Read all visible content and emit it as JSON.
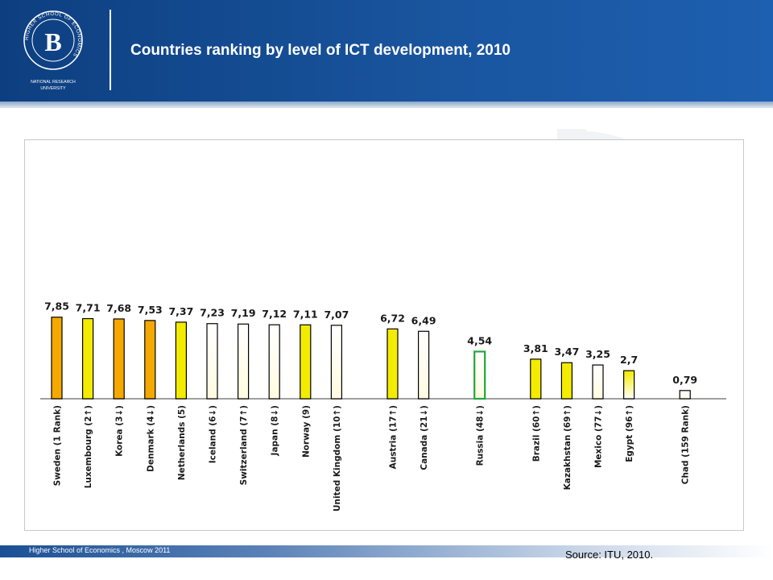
{
  "header": {
    "title": "Countries ranking by level of ICT development, 2010",
    "logo_text": "HIGHER SCHOOL OF ECONOMICS",
    "logo_caption_line1": "NATIONAL RESEARCH",
    "logo_caption_line2": "UNIVERSITY",
    "colors": {
      "background": "#1a56a0",
      "text": "#ffffff"
    }
  },
  "footer": {
    "institution": "Higher School of Economics , Moscow 2011",
    "source": "Source: ITU, 2010."
  },
  "chart_data": {
    "type": "bar",
    "title": "",
    "xlabel": "",
    "ylabel": "",
    "ylim": [
      0,
      8.5
    ],
    "grid": false,
    "legend": "none",
    "categories": [
      "Sweden (1 Rank)",
      "Luxembourg (2↑)",
      "Korea (3↓)",
      "Denmark (4↓)",
      "Netherlands (5)",
      "Iceland (6↓)",
      "Switzerland (7↑)",
      "Japan (8↓)",
      "Norway (9)",
      "United Kingdom (10↑)",
      "Austria (17↑)",
      "Canada (21↓)",
      "Russia (48↓)",
      "Brazil (60↑)",
      "Kazakhstan (69↑)",
      "Mexico (77↓)",
      "Egypt (96↑)",
      "Chad (159 Rank)"
    ],
    "values": [
      7.85,
      7.71,
      7.68,
      7.53,
      7.37,
      7.23,
      7.19,
      7.12,
      7.11,
      7.07,
      6.72,
      6.49,
      4.54,
      3.81,
      3.47,
      3.25,
      2.7,
      0.79
    ],
    "value_labels": [
      "7,85",
      "7,71",
      "7,68",
      "7,53",
      "7,37",
      "7,23",
      "7,19",
      "7,12",
      "7,11",
      "7,07",
      "6,72",
      "6,49",
      "4,54",
      "3,81",
      "3,47",
      "3,25",
      "2,7",
      "0,79"
    ],
    "groups": [
      0,
      0,
      0,
      0,
      0,
      0,
      0,
      0,
      0,
      0,
      1,
      1,
      2,
      3,
      3,
      3,
      3,
      4
    ],
    "fills": [
      "orange",
      "yellow",
      "orange",
      "orange",
      "yellow",
      "white",
      "white",
      "white",
      "yellow",
      "white",
      "yellow",
      "white",
      "white",
      "yellow",
      "yellow",
      "white",
      "yellow",
      "white"
    ],
    "highlight_index": 12,
    "colors": {
      "orange": "#f5a800",
      "yellow": "#f4ec00",
      "highlight_border": "#22a63c",
      "border": "#000000"
    }
  }
}
